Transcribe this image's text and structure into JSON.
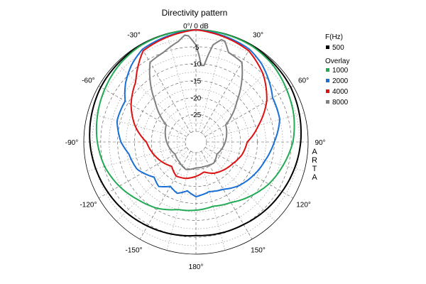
{
  "chart_data": {
    "type": "polar",
    "title": "Directivity pattern",
    "top_label": "0°/ 0 dB",
    "watermark": "ARTA",
    "angle_labels": [
      {
        "deg": 0,
        "text": ""
      },
      {
        "deg": 30,
        "text": "30°"
      },
      {
        "deg": 60,
        "text": "60°"
      },
      {
        "deg": 90,
        "text": "90°"
      },
      {
        "deg": 120,
        "text": "120°"
      },
      {
        "deg": 150,
        "text": "150°"
      },
      {
        "deg": 180,
        "text": "180°"
      },
      {
        "deg": -150,
        "text": "-150°"
      },
      {
        "deg": -120,
        "text": "-120°"
      },
      {
        "deg": -90,
        "text": "-90°"
      },
      {
        "deg": -60,
        "text": "-60°"
      },
      {
        "deg": -30,
        "text": "-30°"
      }
    ],
    "db_labels": [
      "-5",
      "-10",
      "-15",
      "-20",
      "-25"
    ],
    "db_range": [
      -30,
      0
    ],
    "legend": {
      "header": "F(Hz)",
      "main": {
        "name": "500",
        "color": "#000000"
      },
      "overlay_header": "Overlay",
      "overlay": [
        {
          "name": "1000",
          "color": "#22aa55"
        },
        {
          "name": "2000",
          "color": "#1a6fd6"
        },
        {
          "name": "4000",
          "color": "#dd1111"
        },
        {
          "name": "8000",
          "color": "#808080"
        }
      ]
    },
    "series": [
      {
        "name": "500",
        "color": "#000000",
        "points": [
          [
            -180,
            -5.5
          ],
          [
            -150,
            -4.5
          ],
          [
            -120,
            -3.2
          ],
          [
            -90,
            -1.8
          ],
          [
            -60,
            -0.7
          ],
          [
            -30,
            -0.2
          ],
          [
            0,
            0
          ],
          [
            30,
            -0.2
          ],
          [
            60,
            -0.8
          ],
          [
            90,
            -2.2
          ],
          [
            120,
            -3.8
          ],
          [
            150,
            -5
          ],
          [
            180,
            -5.5
          ]
        ]
      },
      {
        "name": "1000",
        "color": "#22aa55",
        "points": [
          [
            -180,
            -13
          ],
          [
            -165,
            -12.5
          ],
          [
            -150,
            -10.5
          ],
          [
            -135,
            -9
          ],
          [
            -120,
            -7
          ],
          [
            -105,
            -5.2
          ],
          [
            -90,
            -4
          ],
          [
            -75,
            -3
          ],
          [
            -60,
            -2
          ],
          [
            -45,
            -1
          ],
          [
            -30,
            -0.3
          ],
          [
            0,
            0
          ],
          [
            30,
            -0.3
          ],
          [
            45,
            -1
          ],
          [
            60,
            -2.2
          ],
          [
            75,
            -3.2
          ],
          [
            90,
            -4.5
          ],
          [
            105,
            -6.5
          ],
          [
            120,
            -8.3
          ],
          [
            135,
            -10.5
          ],
          [
            150,
            -12.5
          ],
          [
            165,
            -13.5
          ],
          [
            180,
            -13
          ]
        ]
      },
      {
        "name": "2000",
        "color": "#1a6fd6",
        "points": [
          [
            -180,
            -17
          ],
          [
            -170,
            -18.5
          ],
          [
            -160,
            -17
          ],
          [
            -150,
            -18
          ],
          [
            -140,
            -16
          ],
          [
            -130,
            -17
          ],
          [
            -115,
            -14
          ],
          [
            -100,
            -13
          ],
          [
            -90,
            -11
          ],
          [
            -75,
            -9
          ],
          [
            -60,
            -9
          ],
          [
            -50,
            -6
          ],
          [
            -40,
            -3.5
          ],
          [
            -30,
            -1.5
          ],
          [
            0,
            0
          ],
          [
            30,
            -1.5
          ],
          [
            40,
            -3
          ],
          [
            50,
            -5
          ],
          [
            60,
            -7
          ],
          [
            75,
            -7.5
          ],
          [
            90,
            -10
          ],
          [
            105,
            -12
          ],
          [
            120,
            -13.5
          ],
          [
            135,
            -15
          ],
          [
            150,
            -17
          ],
          [
            165,
            -18
          ],
          [
            180,
            -17
          ]
        ]
      },
      {
        "name": "4000",
        "color": "#dd1111",
        "points": [
          [
            -180,
            -23
          ],
          [
            -165,
            -22
          ],
          [
            -150,
            -21.5
          ],
          [
            -135,
            -23
          ],
          [
            -120,
            -21.5
          ],
          [
            -105,
            -20
          ],
          [
            -90,
            -18.5
          ],
          [
            -75,
            -14.5
          ],
          [
            -60,
            -11
          ],
          [
            -45,
            -8
          ],
          [
            -30,
            -2
          ],
          [
            -15,
            -1
          ],
          [
            0,
            0
          ],
          [
            15,
            -1
          ],
          [
            30,
            -2
          ],
          [
            45,
            -5
          ],
          [
            60,
            -9
          ],
          [
            75,
            -14
          ],
          [
            90,
            -18
          ],
          [
            105,
            -19
          ],
          [
            120,
            -20.5
          ],
          [
            135,
            -21.5
          ],
          [
            150,
            -22.5
          ],
          [
            165,
            -24
          ],
          [
            180,
            -23
          ]
        ]
      },
      {
        "name": "8000",
        "color": "#808080",
        "points": [
          [
            -180,
            -25.5
          ],
          [
            -160,
            -24.5
          ],
          [
            -140,
            -25.5
          ],
          [
            -120,
            -26
          ],
          [
            -100,
            -25
          ],
          [
            -80,
            -24
          ],
          [
            -60,
            -23
          ],
          [
            -45,
            -16
          ],
          [
            -30,
            -6
          ],
          [
            -20,
            -5
          ],
          [
            -10,
            -3
          ],
          [
            -5,
            -1
          ],
          [
            0,
            -4.5
          ],
          [
            5,
            -12
          ],
          [
            10,
            -4
          ],
          [
            15,
            -1.5
          ],
          [
            20,
            -5
          ],
          [
            30,
            -6
          ],
          [
            45,
            -16
          ],
          [
            60,
            -23
          ],
          [
            80,
            -24
          ],
          [
            100,
            -25
          ],
          [
            120,
            -26
          ],
          [
            140,
            -25
          ],
          [
            160,
            -25.5
          ],
          [
            180,
            -25.5
          ]
        ]
      }
    ]
  }
}
